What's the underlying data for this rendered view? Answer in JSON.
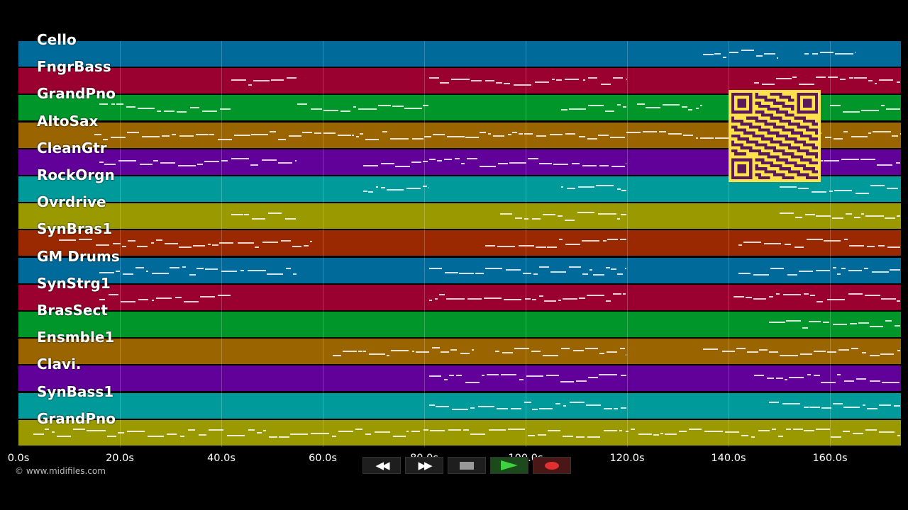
{
  "tracks": [
    {
      "name": "Cello",
      "color": "#006a9a"
    },
    {
      "name": "FngrBass",
      "color": "#9a0030"
    },
    {
      "name": "GrandPno",
      "color": "#00962a"
    },
    {
      "name": "AltoSax",
      "color": "#9a6400"
    },
    {
      "name": "CleanGtr",
      "color": "#62009a"
    },
    {
      "name": "RockOrgn",
      "color": "#009a9a"
    },
    {
      "name": "Ovrdrive",
      "color": "#9a9a00"
    },
    {
      "name": "SynBras1",
      "color": "#9a2800"
    },
    {
      "name": "GM Drums",
      "color": "#006a9a"
    },
    {
      "name": "SynStrg1",
      "color": "#9a0030"
    },
    {
      "name": "BrasSect",
      "color": "#00962a"
    },
    {
      "name": "Ensmble1",
      "color": "#9a6400"
    },
    {
      "name": "Clavi.",
      "color": "#62009a"
    },
    {
      "name": "SynBass1",
      "color": "#009a9a"
    },
    {
      "name": "GrandPno",
      "color": "#9a9a00"
    }
  ],
  "timeline": {
    "ticks": [
      "0.0s",
      "20.0s",
      "40.0s",
      "60.0s",
      "80.0s",
      "100.0s",
      "120.0s",
      "140.0s",
      "160.0s"
    ],
    "tick_values": [
      0,
      20,
      40,
      60,
      80,
      100,
      120,
      140,
      160
    ],
    "max_seconds": 174
  },
  "copyright": "© www.midifiles.com",
  "transport": {
    "rewind_icon": "rewind-icon",
    "forward_icon": "fast-forward-icon",
    "stop_icon": "stop-icon",
    "play_icon": "play-icon",
    "record_icon": "record-icon"
  },
  "qr_code": {
    "icon": "qr-code-icon",
    "fg": "#5a1a5a",
    "bg": "#ffe14a"
  }
}
